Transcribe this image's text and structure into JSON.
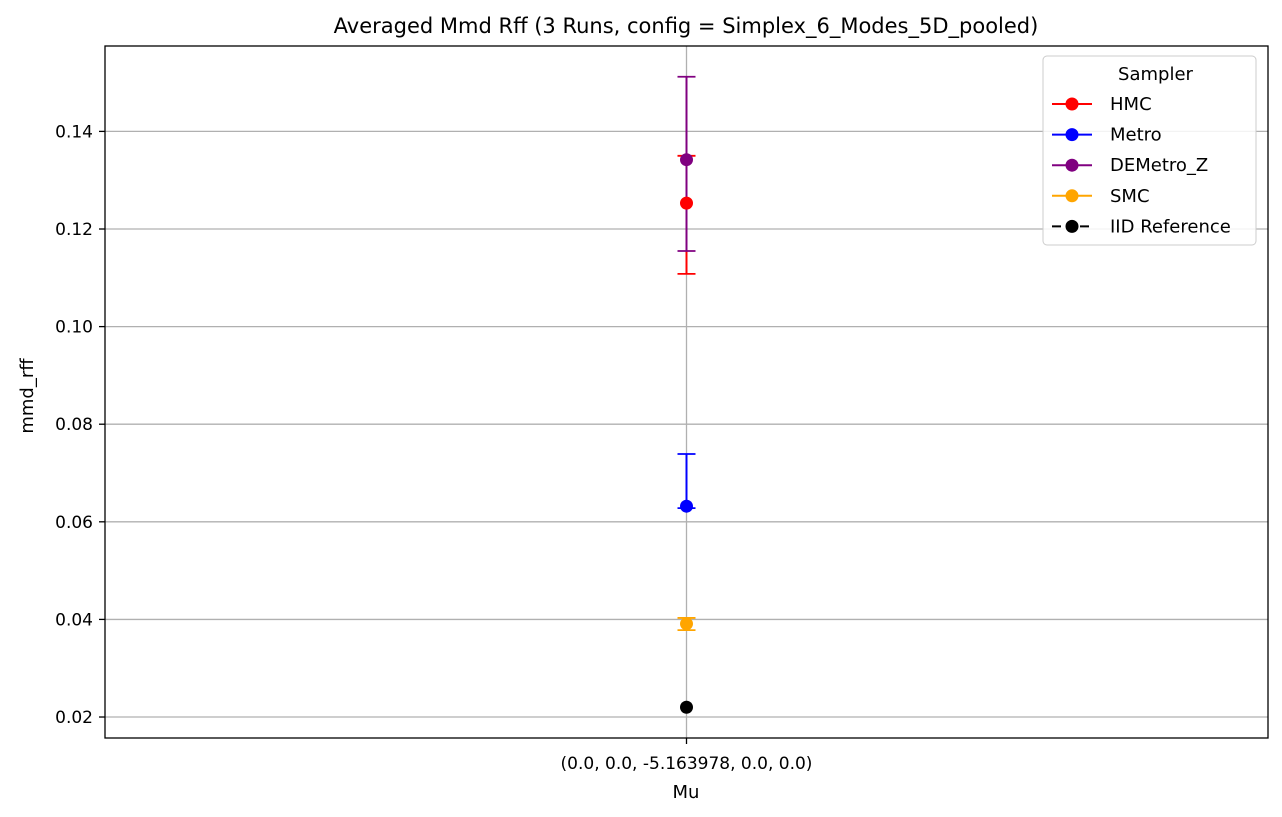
{
  "chart_data": {
    "type": "scatter",
    "title": "Averaged Mmd Rff (3 Runs, config = Simplex_6_Modes_5D_pooled)",
    "xlabel": "Mu",
    "ylabel": "mmd_rff",
    "categories": [
      "(0.0, 0.0, -5.163978, 0.0, 0.0)"
    ],
    "ylim": [
      0.0157,
      0.1575
    ],
    "yticks": [
      0.02,
      0.04,
      0.06,
      0.08,
      0.1,
      0.12,
      0.14
    ],
    "ytick_labels": [
      "0.02",
      "0.04",
      "0.06",
      "0.08",
      "0.10",
      "0.12",
      "0.14"
    ],
    "grid": true,
    "legend": {
      "title": "Sampler",
      "placement": "top-right"
    },
    "series": [
      {
        "name": "HMC",
        "color": "#ff0000",
        "values": [
          0.1253
        ],
        "err_low": [
          0.1108
        ],
        "err_high": [
          0.135
        ],
        "marker_style": "solid"
      },
      {
        "name": "Metro",
        "color": "#0000ff",
        "values": [
          0.0632
        ],
        "err_low": [
          0.0628
        ],
        "err_high": [
          0.0739
        ],
        "marker_style": "solid"
      },
      {
        "name": "DEMetro_Z",
        "color": "#800080",
        "values": [
          0.1342
        ],
        "err_low": [
          0.1155
        ],
        "err_high": [
          0.1512
        ],
        "marker_style": "solid"
      },
      {
        "name": "SMC",
        "color": "#ffa500",
        "values": [
          0.0391
        ],
        "err_low": [
          0.0378
        ],
        "err_high": [
          0.0403
        ],
        "marker_style": "solid"
      },
      {
        "name": "IID Reference",
        "color": "#000000",
        "values": [
          0.022
        ],
        "err_low": [
          0.022
        ],
        "err_high": [
          0.022
        ],
        "marker_style": "dashed"
      }
    ]
  }
}
